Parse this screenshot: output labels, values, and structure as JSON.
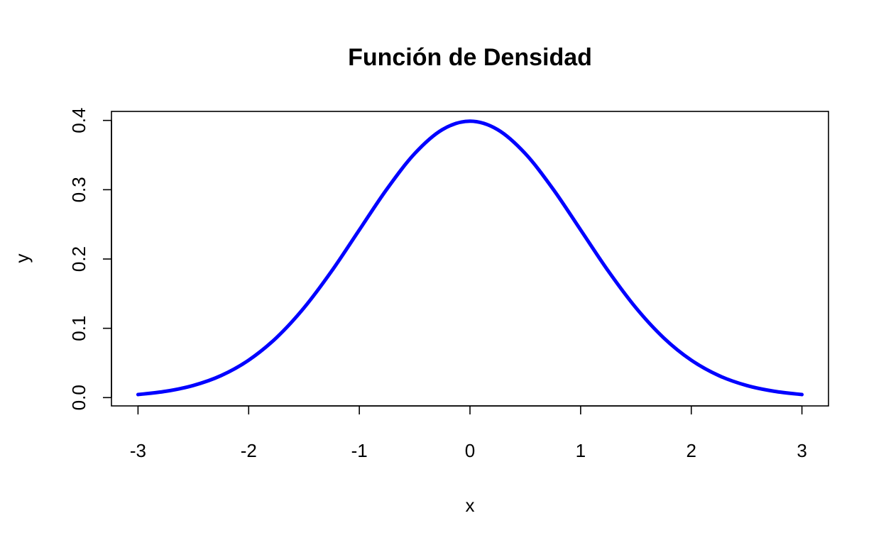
{
  "chart_data": {
    "type": "line",
    "title": "Función de Densidad",
    "xlabel": "x",
    "ylabel": "y",
    "xlim": [
      -3.24,
      3.24
    ],
    "ylim": [
      -0.012,
      0.413
    ],
    "x_ticks": [
      -3,
      -2,
      -1,
      0,
      1,
      2,
      3
    ],
    "x_tick_labels": [
      "-3",
      "-2",
      "-1",
      "0",
      "1",
      "2",
      "3"
    ],
    "y_ticks": [
      0.0,
      0.1,
      0.2,
      0.3,
      0.4
    ],
    "y_tick_labels": [
      "0.0",
      "0.1",
      "0.2",
      "0.3",
      "0.4"
    ],
    "grid": false,
    "legend": "none",
    "series": [
      {
        "color": "#0000ff",
        "x": [
          -3.0,
          -2.75,
          -2.5,
          -2.25,
          -2.0,
          -1.75,
          -1.5,
          -1.25,
          -1.0,
          -0.75,
          -0.5,
          -0.25,
          0.0,
          0.25,
          0.5,
          0.75,
          1.0,
          1.25,
          1.5,
          1.75,
          2.0,
          2.25,
          2.5,
          2.75,
          3.0
        ],
        "y": [
          0.0044,
          0.0091,
          0.0175,
          0.0317,
          0.054,
          0.0863,
          0.1295,
          0.1826,
          0.242,
          0.3011,
          0.3521,
          0.3867,
          0.3989,
          0.3867,
          0.3521,
          0.3011,
          0.242,
          0.1826,
          0.1295,
          0.0863,
          0.054,
          0.0317,
          0.0175,
          0.0091,
          0.0044
        ]
      }
    ]
  }
}
